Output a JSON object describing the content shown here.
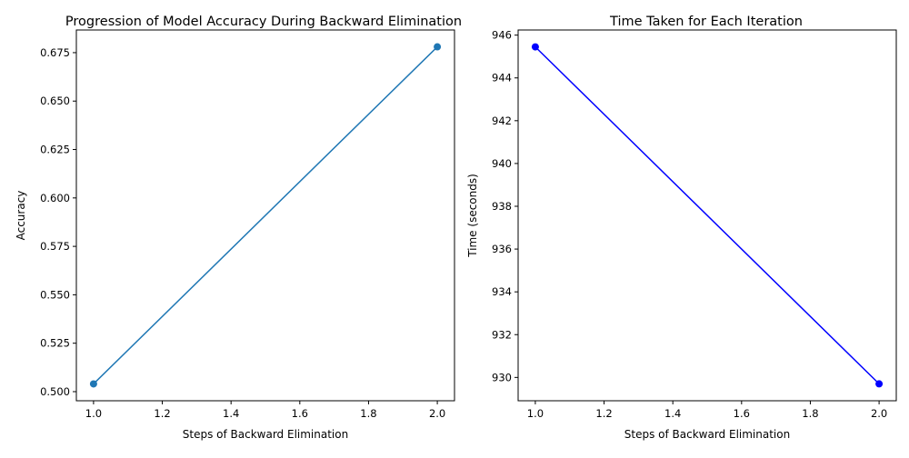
{
  "chart_data": [
    {
      "type": "line",
      "title": "Progression of Model Accuracy During Backward Elimination",
      "xlabel": "Steps of Backward Elimination",
      "ylabel": "Accuracy",
      "x": [
        1.0,
        2.0
      ],
      "series": [
        {
          "values": [
            0.504,
            0.678
          ],
          "color": "#1f77b4",
          "marker": "circle"
        }
      ],
      "xlim": [
        0.95,
        2.05
      ],
      "ylim": [
        0.4953,
        0.6867
      ],
      "xticks": [
        1.0,
        1.2,
        1.4,
        1.6,
        1.8,
        2.0
      ],
      "xtick_labels": [
        "1.0",
        "1.2",
        "1.4",
        "1.6",
        "1.8",
        "2.0"
      ],
      "yticks": [
        0.5,
        0.525,
        0.55,
        0.575,
        0.6,
        0.625,
        0.65,
        0.675
      ],
      "ytick_labels": [
        "0.500",
        "0.525",
        "0.550",
        "0.575",
        "0.600",
        "0.625",
        "0.650",
        "0.675"
      ],
      "grid": false,
      "legend": false
    },
    {
      "type": "line",
      "title": "Time Taken for Each Iteration",
      "xlabel": "Steps of Backward Elimination",
      "ylabel": "Time (seconds)",
      "x": [
        1.0,
        2.0
      ],
      "series": [
        {
          "values": [
            945.45,
            929.7
          ],
          "color": "#0000ff",
          "marker": "circle"
        }
      ],
      "xlim": [
        0.95,
        2.05
      ],
      "ylim": [
        928.91,
        946.24
      ],
      "xticks": [
        1.0,
        1.2,
        1.4,
        1.6,
        1.8,
        2.0
      ],
      "xtick_labels": [
        "1.0",
        "1.2",
        "1.4",
        "1.6",
        "1.8",
        "2.0"
      ],
      "yticks": [
        930,
        932,
        934,
        936,
        938,
        940,
        942,
        944,
        946
      ],
      "ytick_labels": [
        "930",
        "932",
        "934",
        "936",
        "938",
        "940",
        "942",
        "944",
        "946"
      ],
      "grid": false,
      "legend": false
    }
  ]
}
